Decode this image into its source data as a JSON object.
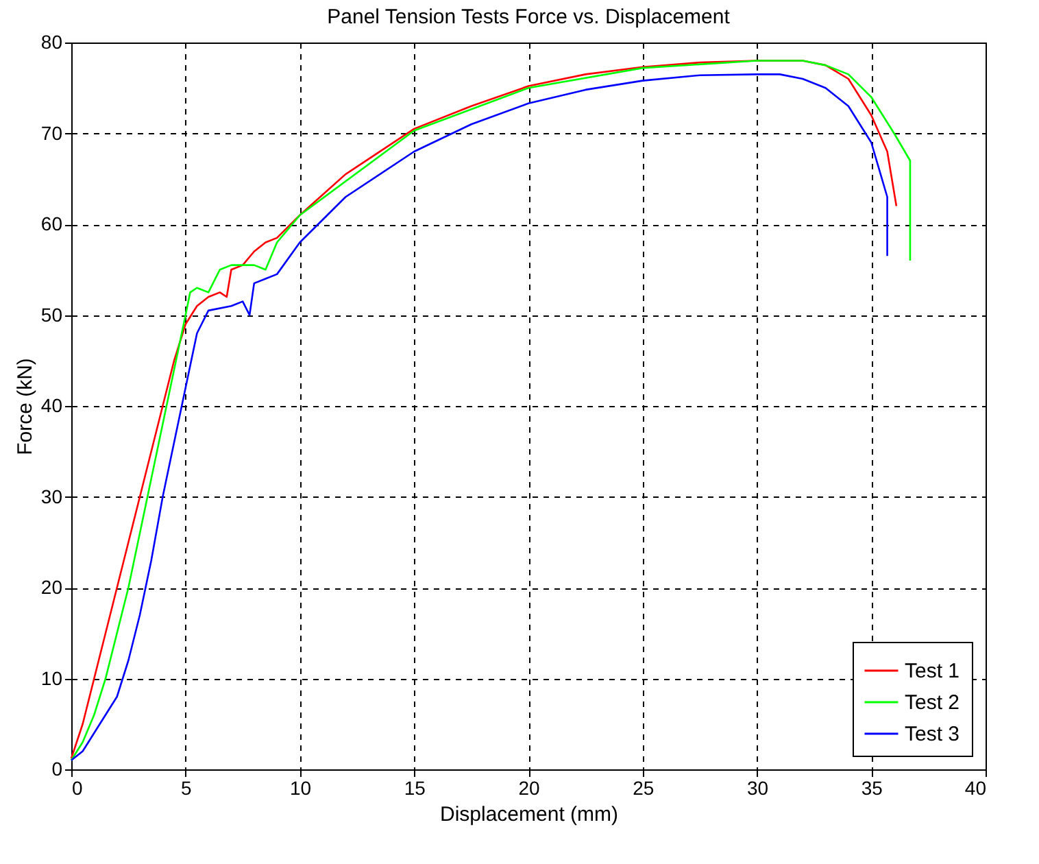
{
  "chart_data": {
    "type": "line",
    "title": "Panel Tension Tests Force vs. Displacement",
    "xlabel": "Displacement (mm)",
    "ylabel": "Force (kN)",
    "xlim": [
      0,
      40
    ],
    "xticks": [
      0,
      5,
      10,
      15,
      20,
      25,
      30,
      35,
      40
    ],
    "ylim": [
      0,
      80
    ],
    "yticks": [
      0,
      10,
      20,
      30,
      40,
      50,
      60,
      70,
      80
    ],
    "grid": true,
    "legend": "bottom right",
    "line_style": "solid",
    "series": [
      {
        "name": "Test 1",
        "color": "#ff0000",
        "x": [
          0,
          0.5,
          1,
          1.5,
          2,
          2.5,
          3,
          3.5,
          4,
          4.5,
          5,
          5.5,
          6,
          6.5,
          6.8,
          7,
          7.5,
          8,
          8.5,
          9,
          10,
          12,
          15,
          17.5,
          20,
          22.5,
          25,
          27.5,
          30,
          32,
          33,
          34,
          35,
          35.7,
          36.1
        ],
        "values": [
          1.2,
          5,
          10,
          15,
          20,
          25,
          30,
          35,
          40,
          45,
          49,
          51,
          52,
          52.5,
          52,
          55,
          55.5,
          57,
          58,
          58.5,
          61,
          65.5,
          70.5,
          73,
          75.2,
          76.5,
          77.3,
          77.8,
          78,
          78,
          77.5,
          76,
          72,
          68,
          62
        ]
      },
      {
        "name": "Test 2",
        "color": "#00ff00",
        "x": [
          0,
          0.5,
          1,
          1.5,
          2,
          2.5,
          3,
          3.5,
          4,
          4.5,
          5,
          5.2,
          5.5,
          6,
          6.5,
          7,
          8,
          8.5,
          9,
          9.5,
          10,
          15,
          20,
          25,
          30,
          32,
          33,
          34,
          35,
          36,
          36.7,
          36.7
        ],
        "values": [
          1,
          3,
          6,
          10,
          15,
          20,
          26,
          32,
          38,
          44,
          50,
          52.5,
          53,
          52.5,
          55,
          55.5,
          55.5,
          55,
          58,
          59.5,
          61,
          70.3,
          75,
          77.2,
          78,
          78,
          77.5,
          76.5,
          74,
          70,
          67,
          56
        ]
      },
      {
        "name": "Test 3",
        "color": "#0000ff",
        "x": [
          0,
          0.5,
          1,
          1.5,
          2,
          2.5,
          3,
          3.5,
          4,
          4.5,
          5,
          5.5,
          6,
          7,
          7.5,
          7.8,
          8,
          8.5,
          9,
          10,
          12,
          15,
          17.5,
          20,
          22.5,
          25,
          27.5,
          30,
          31,
          32,
          33,
          34,
          35,
          35.7,
          35.7
        ],
        "values": [
          1,
          2,
          4,
          6,
          8,
          12,
          17,
          23,
          30,
          36,
          42,
          48,
          50.5,
          51,
          51.5,
          50,
          53.5,
          54,
          54.5,
          58,
          63,
          68,
          71,
          73.3,
          74.8,
          75.8,
          76.4,
          76.5,
          76.5,
          76,
          75,
          73,
          69,
          63,
          56.5
        ]
      }
    ]
  }
}
